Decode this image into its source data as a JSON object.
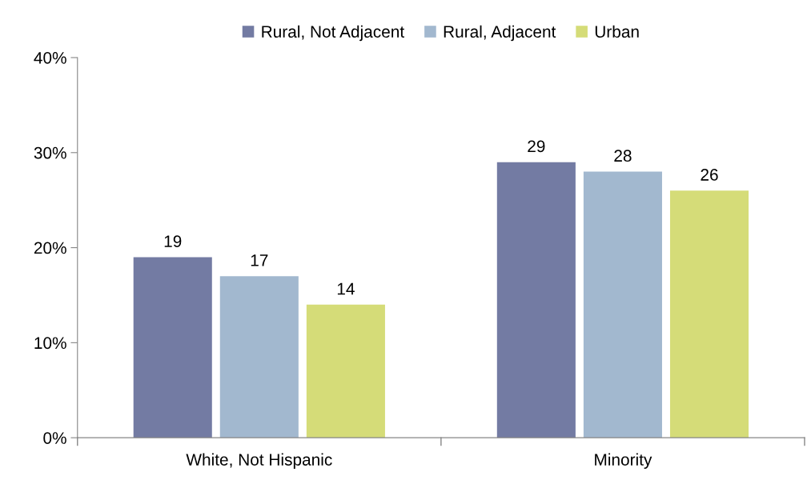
{
  "chart_data": {
    "type": "bar",
    "categories": [
      "White, Not Hispanic",
      "Minority"
    ],
    "series": [
      {
        "name": "Rural, Not Adjacent",
        "color": "#737ba3",
        "values": [
          19,
          29
        ]
      },
      {
        "name": "Rural, Adjacent",
        "color": "#a2b8cf",
        "values": [
          17,
          28
        ]
      },
      {
        "name": "Urban",
        "color": "#d5dc78",
        "values": [
          14,
          26
        ]
      }
    ],
    "ylim": [
      0,
      40
    ],
    "yticks": [
      {
        "value": 0,
        "label": "0%"
      },
      {
        "value": 10,
        "label": "10%"
      },
      {
        "value": 20,
        "label": "20%"
      },
      {
        "value": 30,
        "label": "30%"
      },
      {
        "value": 40,
        "label": "40%"
      }
    ],
    "data_labels": true,
    "grid": false,
    "legend": "top"
  }
}
